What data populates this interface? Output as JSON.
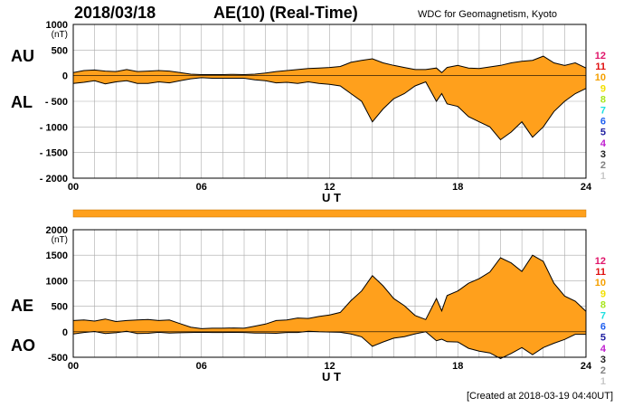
{
  "header": {
    "date": "2018/03/18",
    "title": "AE(10) (Real-Time)",
    "source": "WDC for Geomagnetism, Kyoto"
  },
  "footer": "[Created at 2018-03-19 04:40UT]",
  "legend_numbers": [
    "12",
    "11",
    "10",
    "9",
    "8",
    "7",
    "6",
    "5",
    "4",
    "3",
    "2",
    "1"
  ],
  "legend_colors": [
    "#e0156a",
    "#e01010",
    "#f5a000",
    "#f2e000",
    "#a8e61d",
    "#1de0e0",
    "#2060f0",
    "#2020a0",
    "#c020d0",
    "#202020",
    "#808080",
    "#c8c8c8"
  ],
  "colors": {
    "fill": "#ffa01c",
    "line": "#000000",
    "grid": "#aaaaaa"
  },
  "chart_data": [
    {
      "type": "area",
      "panel": "AU/AL",
      "side_labels": [
        "AU",
        "AL"
      ],
      "unit": "(nT)",
      "xlabel": "U T",
      "xticks": [
        "00",
        "06",
        "12",
        "18",
        "24"
      ],
      "yticks": [
        "1000",
        "500",
        "0",
        "- 500",
        "- 1000",
        "- 1500",
        "- 2000"
      ],
      "ytick_values": [
        1000,
        500,
        0,
        -500,
        -1000,
        -1500,
        -2000
      ],
      "ylim": [
        -2000,
        1000
      ],
      "xlim": [
        0,
        24
      ],
      "grid": true,
      "series": [
        {
          "name": "AU",
          "x": [
            0,
            0.5,
            1,
            1.5,
            2,
            2.5,
            3,
            3.5,
            4,
            4.5,
            5,
            5.5,
            6,
            6.5,
            7,
            7.5,
            8,
            8.5,
            9,
            9.5,
            10,
            10.5,
            11,
            11.5,
            12,
            12.5,
            13,
            13.5,
            14,
            14.5,
            15,
            15.5,
            16,
            16.5,
            17,
            17.25,
            17.5,
            18,
            18.5,
            19,
            19.5,
            20,
            20.5,
            21,
            21.5,
            22,
            22.5,
            23,
            23.5,
            24
          ],
          "values": [
            60,
            100,
            110,
            90,
            80,
            120,
            80,
            90,
            100,
            90,
            60,
            30,
            20,
            20,
            20,
            25,
            20,
            30,
            50,
            80,
            100,
            120,
            140,
            150,
            160,
            180,
            260,
            300,
            330,
            250,
            200,
            160,
            120,
            120,
            150,
            60,
            160,
            200,
            150,
            140,
            170,
            200,
            250,
            280,
            300,
            380,
            250,
            200,
            250,
            150
          ]
        },
        {
          "name": "AL",
          "x": [
            0,
            0.5,
            1,
            1.5,
            2,
            2.5,
            3,
            3.5,
            4,
            4.5,
            5,
            5.5,
            6,
            6.5,
            7,
            7.5,
            8,
            8.5,
            9,
            9.5,
            10,
            10.5,
            11,
            11.5,
            12,
            12.5,
            13,
            13.5,
            14,
            14.5,
            15,
            15.5,
            16,
            16.5,
            17,
            17.25,
            17.5,
            18,
            18.5,
            19,
            19.5,
            20,
            20.5,
            21,
            21.5,
            22,
            22.5,
            23,
            23.5,
            24
          ],
          "values": [
            -150,
            -130,
            -100,
            -160,
            -120,
            -100,
            -150,
            -150,
            -120,
            -140,
            -100,
            -60,
            -40,
            -50,
            -50,
            -50,
            -50,
            -80,
            -100,
            -140,
            -130,
            -150,
            -120,
            -150,
            -170,
            -200,
            -350,
            -500,
            -900,
            -650,
            -450,
            -350,
            -200,
            -120,
            -500,
            -350,
            -550,
            -600,
            -800,
            -900,
            -1000,
            -1250,
            -1100,
            -900,
            -1200,
            -1000,
            -700,
            -500,
            -350,
            -250
          ]
        }
      ]
    },
    {
      "type": "area",
      "panel": "AE/AO",
      "side_labels": [
        "AE",
        "AO"
      ],
      "unit": "(nT)",
      "xlabel": "U T",
      "xticks": [
        "00",
        "06",
        "12",
        "18",
        "24"
      ],
      "yticks": [
        "2000",
        "1500",
        "1000",
        "500",
        "0",
        "-500"
      ],
      "ytick_values": [
        2000,
        1500,
        1000,
        500,
        0,
        -500
      ],
      "ylim": [
        -500,
        2000
      ],
      "xlim": [
        0,
        24
      ],
      "grid": true,
      "series": [
        {
          "name": "AE",
          "x": [
            0,
            0.5,
            1,
            1.5,
            2,
            2.5,
            3,
            3.5,
            4,
            4.5,
            5,
            5.5,
            6,
            6.5,
            7,
            7.5,
            8,
            8.5,
            9,
            9.5,
            10,
            10.5,
            11,
            11.5,
            12,
            12.5,
            13,
            13.5,
            14,
            14.5,
            15,
            15.5,
            16,
            16.5,
            17,
            17.25,
            17.5,
            18,
            18.5,
            19,
            19.5,
            20,
            20.5,
            21,
            21.5,
            22,
            22.5,
            23,
            23.5,
            24
          ],
          "values": [
            220,
            230,
            210,
            250,
            200,
            220,
            230,
            240,
            220,
            230,
            160,
            90,
            60,
            70,
            70,
            75,
            70,
            110,
            150,
            220,
            230,
            270,
            260,
            300,
            330,
            380,
            610,
            800,
            1100,
            900,
            650,
            510,
            320,
            240,
            650,
            410,
            710,
            800,
            950,
            1040,
            1170,
            1450,
            1350,
            1180,
            1500,
            1380,
            950,
            700,
            600,
            400
          ]
        },
        {
          "name": "AO",
          "x": [
            0,
            0.5,
            1,
            1.5,
            2,
            2.5,
            3,
            3.5,
            4,
            4.5,
            5,
            5.5,
            6,
            6.5,
            7,
            7.5,
            8,
            8.5,
            9,
            9.5,
            10,
            10.5,
            11,
            11.5,
            12,
            12.5,
            13,
            13.5,
            14,
            14.5,
            15,
            15.5,
            16,
            16.5,
            17,
            17.25,
            17.5,
            18,
            18.5,
            19,
            19.5,
            20,
            20.5,
            21,
            21.5,
            22,
            22.5,
            23,
            23.5,
            24
          ],
          "values": [
            -45,
            -15,
            5,
            -35,
            -20,
            10,
            -35,
            -30,
            -10,
            -25,
            -20,
            -15,
            -10,
            -15,
            -15,
            -12,
            -15,
            -25,
            -25,
            -30,
            -15,
            -15,
            10,
            0,
            -5,
            -10,
            -45,
            -100,
            -285,
            -200,
            -125,
            -95,
            -40,
            0,
            -175,
            -145,
            -195,
            -200,
            -325,
            -380,
            -415,
            -525,
            -425,
            -310,
            -450,
            -310,
            -225,
            -150,
            -50,
            -50
          ]
        }
      ]
    }
  ]
}
